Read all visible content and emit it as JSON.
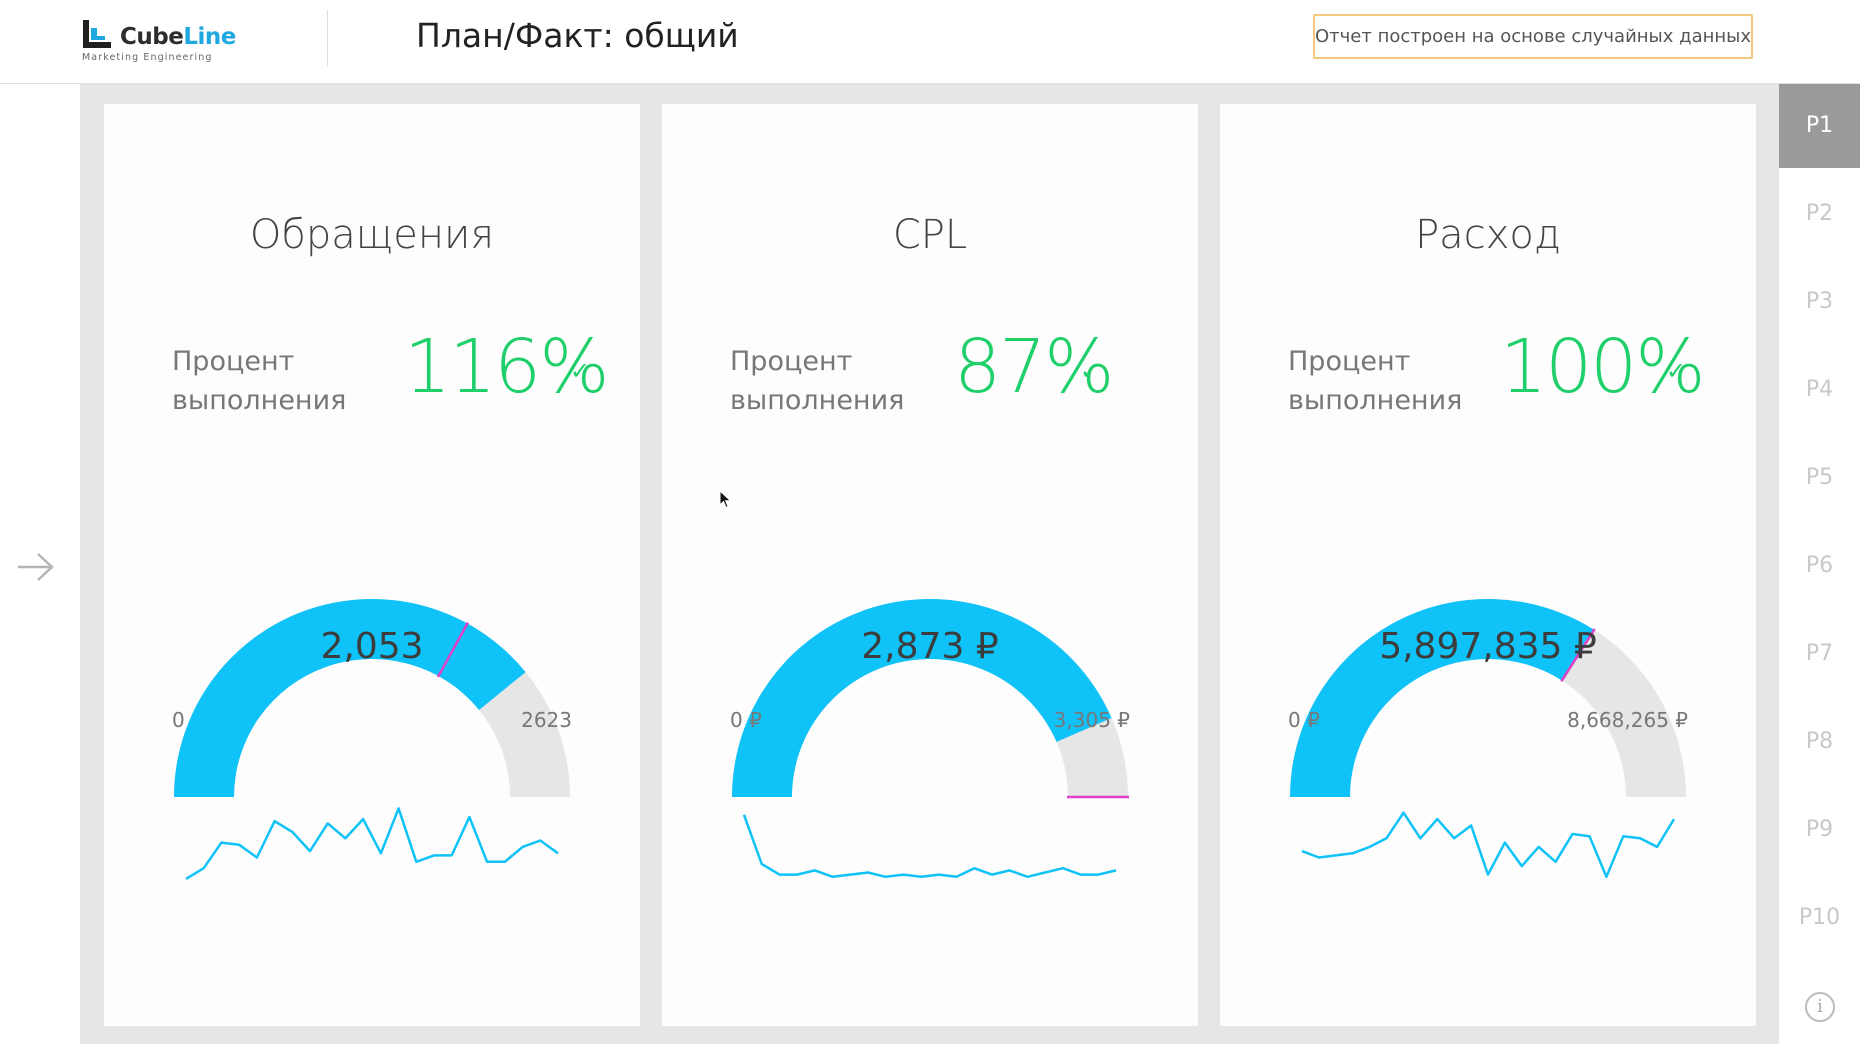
{
  "header": {
    "logo_cube": "Cube",
    "logo_line": "Line",
    "logo_sub": "Marketing Engineering",
    "title": "План/Факт: общий",
    "notice": "Отчет построен на основе случайных данных"
  },
  "colors": {
    "accent": "#0fc2f8",
    "gauge_bg": "#e6e6e6",
    "target": "#e040c8",
    "success": "#1fcf6a",
    "notice_border": "#f3c87a"
  },
  "cards": [
    {
      "title": "Обращения",
      "pct_label_1": "Процент",
      "pct_label_2": "выполнения",
      "pct": "116%",
      "check": "✓",
      "value_text": "2,053",
      "min_text": "0",
      "max_text": "2623",
      "value": 2053,
      "min": 0,
      "max": 2623,
      "target_fraction": 0.66,
      "trend": [
        28,
        33,
        45,
        44,
        38,
        55,
        50,
        41,
        54,
        47,
        56,
        40,
        61,
        36,
        39,
        39,
        57,
        36,
        36,
        43,
        46,
        40
      ]
    },
    {
      "title": "CPL",
      "pct_label_1": "Процент",
      "pct_label_2": "выполнения",
      "pct": "87%",
      "check": "✓",
      "value_text": "2,873 ₽",
      "min_text": "0 ₽",
      "max_text": "3,305 ₽",
      "value": 2873,
      "min": 0,
      "max": 3305,
      "target_fraction": 1.0,
      "trend": [
        58,
        35,
        30,
        30,
        32,
        29,
        30,
        31,
        29,
        30,
        29,
        30,
        29,
        33,
        30,
        32,
        29,
        31,
        33,
        30,
        30,
        32
      ]
    },
    {
      "title": "Расход",
      "pct_label_1": "Процент",
      "pct_label_2": "выполнения",
      "pct": "100%",
      "check": "✓",
      "value_text": "5,897,835 ₽",
      "min_text": "0 ₽",
      "max_text": "8,668,265 ₽",
      "value": 5897835,
      "min": 0,
      "max": 8668265,
      "target_fraction": 0.68,
      "trend": [
        41,
        38,
        39,
        40,
        43,
        47,
        59,
        47,
        56,
        47,
        53,
        30,
        45,
        34,
        43,
        36,
        49,
        48,
        29,
        48,
        47,
        43,
        56
      ]
    }
  ],
  "pages": [
    "P1",
    "P2",
    "P3",
    "P4",
    "P5",
    "P6",
    "P7",
    "P8",
    "P9",
    "P10"
  ],
  "info_label": "i"
}
